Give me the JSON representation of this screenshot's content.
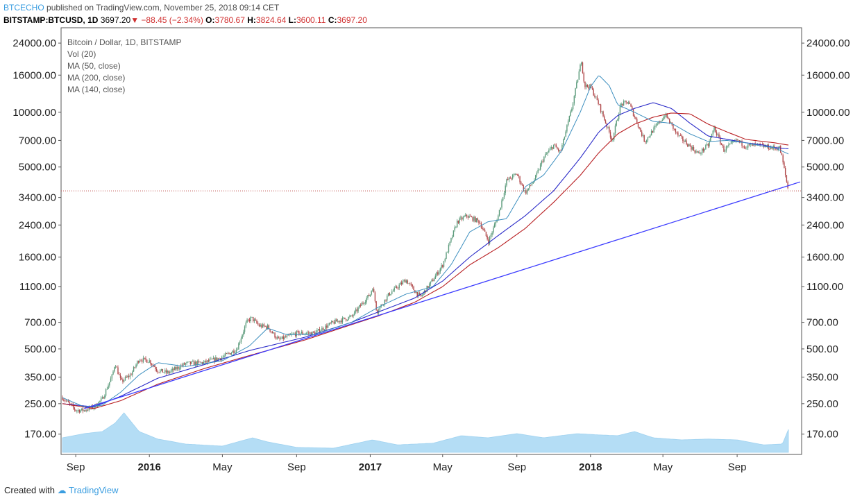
{
  "header": {
    "author": "BTCECHO",
    "published": "published on TradingView.com, November 25, 2018 09:14 CET",
    "symbol": "BITSTAMP:BTCUSD, 1D",
    "last": "3697.20",
    "change": "−88.45 (−2.34%)",
    "open_label": "O:",
    "open": "3780.67",
    "high_label": "H:",
    "high": "3824.64",
    "low_label": "L:",
    "low": "3600.11",
    "close_label": "C:",
    "close": "3697.20"
  },
  "legend": {
    "title": "Bitcoin / Dollar, 1D, BITSTAMP",
    "vol": "Vol (20)",
    "ma50": "MA (50, close)",
    "ma200": "MA (200, close)",
    "ma140": "MA (140, close)"
  },
  "footer": {
    "created_with": "Created with",
    "brand": "TradingView"
  },
  "colors": {
    "up_candle": "#5a9a7a",
    "down_candle": "#b0484a",
    "ma50": "#3d8fbf",
    "ma200": "#b81f22",
    "ma140": "#2a2ac8",
    "trendline": "#3c3cff",
    "volume": "#9cd2f2",
    "hline": "#c0504d",
    "brand": "#3a9de0"
  },
  "chart_data": {
    "type": "line",
    "scale": "log",
    "ylim": [
      150,
      26000
    ],
    "y_ticks": [
      "24000.00",
      "16000.00",
      "10000.00",
      "7000.00",
      "5000.00",
      "3400.00",
      "2400.00",
      "1600.00",
      "1100.00",
      "700.00",
      "500.00",
      "350.00",
      "250.00",
      "170.00"
    ],
    "x_ticks": [
      "Sep",
      "2016",
      "May",
      "Sep",
      "2017",
      "May",
      "Sep",
      "2018",
      "May",
      "Sep"
    ],
    "x_tick_dates": [
      "2015-09-01",
      "2016-01-01",
      "2016-05-01",
      "2016-09-01",
      "2017-01-01",
      "2017-05-01",
      "2017-09-01",
      "2018-01-01",
      "2018-05-01",
      "2018-09-01"
    ],
    "x_range": [
      "2015-08-10",
      "2018-11-25"
    ],
    "horizontal_line": 3697.2,
    "series": [
      {
        "name": "BTCUSD",
        "dates": [
          "2015-08-10",
          "2015-09-01",
          "2015-09-15",
          "2015-10-01",
          "2015-10-15",
          "2015-11-01",
          "2015-11-05",
          "2015-11-15",
          "2015-12-01",
          "2015-12-15",
          "2016-01-01",
          "2016-01-15",
          "2016-02-01",
          "2016-03-01",
          "2016-04-01",
          "2016-05-01",
          "2016-05-25",
          "2016-06-10",
          "2016-06-18",
          "2016-07-01",
          "2016-07-15",
          "2016-08-02",
          "2016-08-15",
          "2016-09-01",
          "2016-10-01",
          "2016-11-01",
          "2016-12-01",
          "2016-12-20",
          "2017-01-01",
          "2017-01-05",
          "2017-01-12",
          "2017-02-01",
          "2017-03-01",
          "2017-03-15",
          "2017-03-25",
          "2017-04-15",
          "2017-05-01",
          "2017-05-25",
          "2017-06-10",
          "2017-07-01",
          "2017-07-16",
          "2017-08-01",
          "2017-08-15",
          "2017-09-01",
          "2017-09-15",
          "2017-10-01",
          "2017-10-15",
          "2017-11-01",
          "2017-11-12",
          "2017-12-01",
          "2017-12-17",
          "2017-12-22",
          "2018-01-01",
          "2018-01-15",
          "2018-02-06",
          "2018-02-20",
          "2018-03-05",
          "2018-04-01",
          "2018-04-15",
          "2018-05-05",
          "2018-05-25",
          "2018-06-15",
          "2018-06-29",
          "2018-07-15",
          "2018-07-25",
          "2018-08-10",
          "2018-08-15",
          "2018-09-01",
          "2018-09-15",
          "2018-10-01",
          "2018-10-15",
          "2018-11-01",
          "2018-11-10",
          "2018-11-14",
          "2018-11-20",
          "2018-11-25"
        ],
        "values": [
          270,
          230,
          230,
          240,
          265,
          360,
          420,
          330,
          360,
          440,
          430,
          380,
          370,
          415,
          420,
          450,
          500,
          700,
          740,
          670,
          660,
          560,
          580,
          610,
          610,
          700,
          750,
          900,
          1000,
          1100,
          800,
          1000,
          1200,
          1050,
          960,
          1200,
          1450,
          2500,
          2700,
          2500,
          1950,
          2700,
          4200,
          4600,
          3600,
          4300,
          5600,
          6600,
          6000,
          10500,
          19300,
          14000,
          13800,
          11000,
          7000,
          11000,
          11400,
          6900,
          8000,
          9700,
          7500,
          6500,
          5900,
          6600,
          8200,
          6200,
          6400,
          7000,
          6500,
          6600,
          6500,
          6350,
          6400,
          5700,
          4500,
          3697
        ]
      },
      {
        "name": "MA (50, close)",
        "dates": [
          "2015-08-10",
          "2015-09-15",
          "2015-10-15",
          "2015-11-15",
          "2015-12-15",
          "2016-01-15",
          "2016-03-01",
          "2016-05-01",
          "2016-06-15",
          "2016-07-15",
          "2016-08-15",
          "2016-10-01",
          "2016-12-01",
          "2017-01-15",
          "2017-03-01",
          "2017-04-15",
          "2017-05-15",
          "2017-06-15",
          "2017-07-15",
          "2017-08-15",
          "2017-09-15",
          "2017-10-15",
          "2017-11-15",
          "2017-12-15",
          "2018-01-01",
          "2018-01-15",
          "2018-02-01",
          "2018-02-15",
          "2018-03-15",
          "2018-04-15",
          "2018-05-15",
          "2018-06-15",
          "2018-07-15",
          "2018-08-15",
          "2018-09-15",
          "2018-10-15",
          "2018-11-01",
          "2018-11-25"
        ],
        "values": [
          270,
          240,
          245,
          290,
          360,
          420,
          400,
          430,
          520,
          650,
          600,
          600,
          700,
          850,
          1000,
          1100,
          1450,
          2200,
          2500,
          2600,
          3900,
          4500,
          6200,
          10000,
          13800,
          16000,
          14000,
          11000,
          10000,
          8900,
          8700,
          7600,
          6900,
          7000,
          6800,
          6500,
          6400,
          5900
        ]
      },
      {
        "name": "MA (200, close)",
        "dates": [
          "2015-08-10",
          "2015-10-01",
          "2015-11-15",
          "2016-01-15",
          "2016-04-01",
          "2016-06-15",
          "2016-09-15",
          "2016-12-01",
          "2017-01-15",
          "2017-03-15",
          "2017-05-01",
          "2017-06-15",
          "2017-08-01",
          "2017-09-15",
          "2017-11-01",
          "2017-12-15",
          "2018-01-15",
          "2018-02-15",
          "2018-03-15",
          "2018-04-15",
          "2018-05-15",
          "2018-06-15",
          "2018-07-15",
          "2018-08-15",
          "2018-09-15",
          "2018-10-15",
          "2018-11-01",
          "2018-11-25"
        ],
        "values": [
          250,
          235,
          260,
          320,
          390,
          460,
          560,
          680,
          760,
          900,
          1100,
          1450,
          1800,
          2300,
          3200,
          4500,
          6000,
          7600,
          8600,
          9400,
          9900,
          9800,
          8600,
          7800,
          7100,
          6900,
          6800,
          6600
        ]
      },
      {
        "name": "MA (140, close)",
        "dates": [
          "2015-08-10",
          "2015-10-01",
          "2015-11-15",
          "2016-01-15",
          "2016-04-01",
          "2016-06-15",
          "2016-09-15",
          "2016-12-01",
          "2017-01-15",
          "2017-03-15",
          "2017-05-01",
          "2017-06-15",
          "2017-08-01",
          "2017-09-15",
          "2017-11-01",
          "2017-12-15",
          "2018-01-15",
          "2018-02-15",
          "2018-03-15",
          "2018-04-15",
          "2018-05-15",
          "2018-06-15",
          "2018-07-15",
          "2018-08-15",
          "2018-09-15",
          "2018-10-15",
          "2018-11-01",
          "2018-11-25"
        ],
        "values": [
          250,
          240,
          275,
          345,
          410,
          490,
          580,
          700,
          800,
          950,
          1180,
          1600,
          2100,
          2700,
          3700,
          5600,
          7800,
          9600,
          10500,
          11300,
          10500,
          8700,
          7400,
          7100,
          6800,
          6600,
          6400,
          6300
        ]
      },
      {
        "name": "Trendline",
        "dates": [
          "2015-09-15",
          "2018-11-25"
        ],
        "values": [
          235,
          3950
        ]
      },
      {
        "name": "Vol (20)",
        "dates": [
          "2015-08-10",
          "2015-09-15",
          "2015-10-15",
          "2015-11-05",
          "2015-11-20",
          "2015-12-15",
          "2016-01-15",
          "2016-03-01",
          "2016-05-01",
          "2016-06-20",
          "2016-07-15",
          "2016-09-01",
          "2016-11-01",
          "2017-01-05",
          "2017-02-15",
          "2017-04-15",
          "2017-06-01",
          "2017-07-15",
          "2017-09-01",
          "2017-10-15",
          "2017-12-10",
          "2018-01-15",
          "2018-02-15",
          "2018-03-15",
          "2018-04-15",
          "2018-06-01",
          "2018-07-15",
          "2018-09-01",
          "2018-10-15",
          "2018-11-15",
          "2018-11-25"
        ],
        "values": [
          0.35,
          0.45,
          0.5,
          0.7,
          0.95,
          0.5,
          0.32,
          0.2,
          0.15,
          0.35,
          0.25,
          0.12,
          0.1,
          0.3,
          0.18,
          0.22,
          0.4,
          0.35,
          0.45,
          0.35,
          0.45,
          0.42,
          0.4,
          0.5,
          0.35,
          0.3,
          0.32,
          0.3,
          0.18,
          0.2,
          0.55
        ]
      }
    ]
  }
}
